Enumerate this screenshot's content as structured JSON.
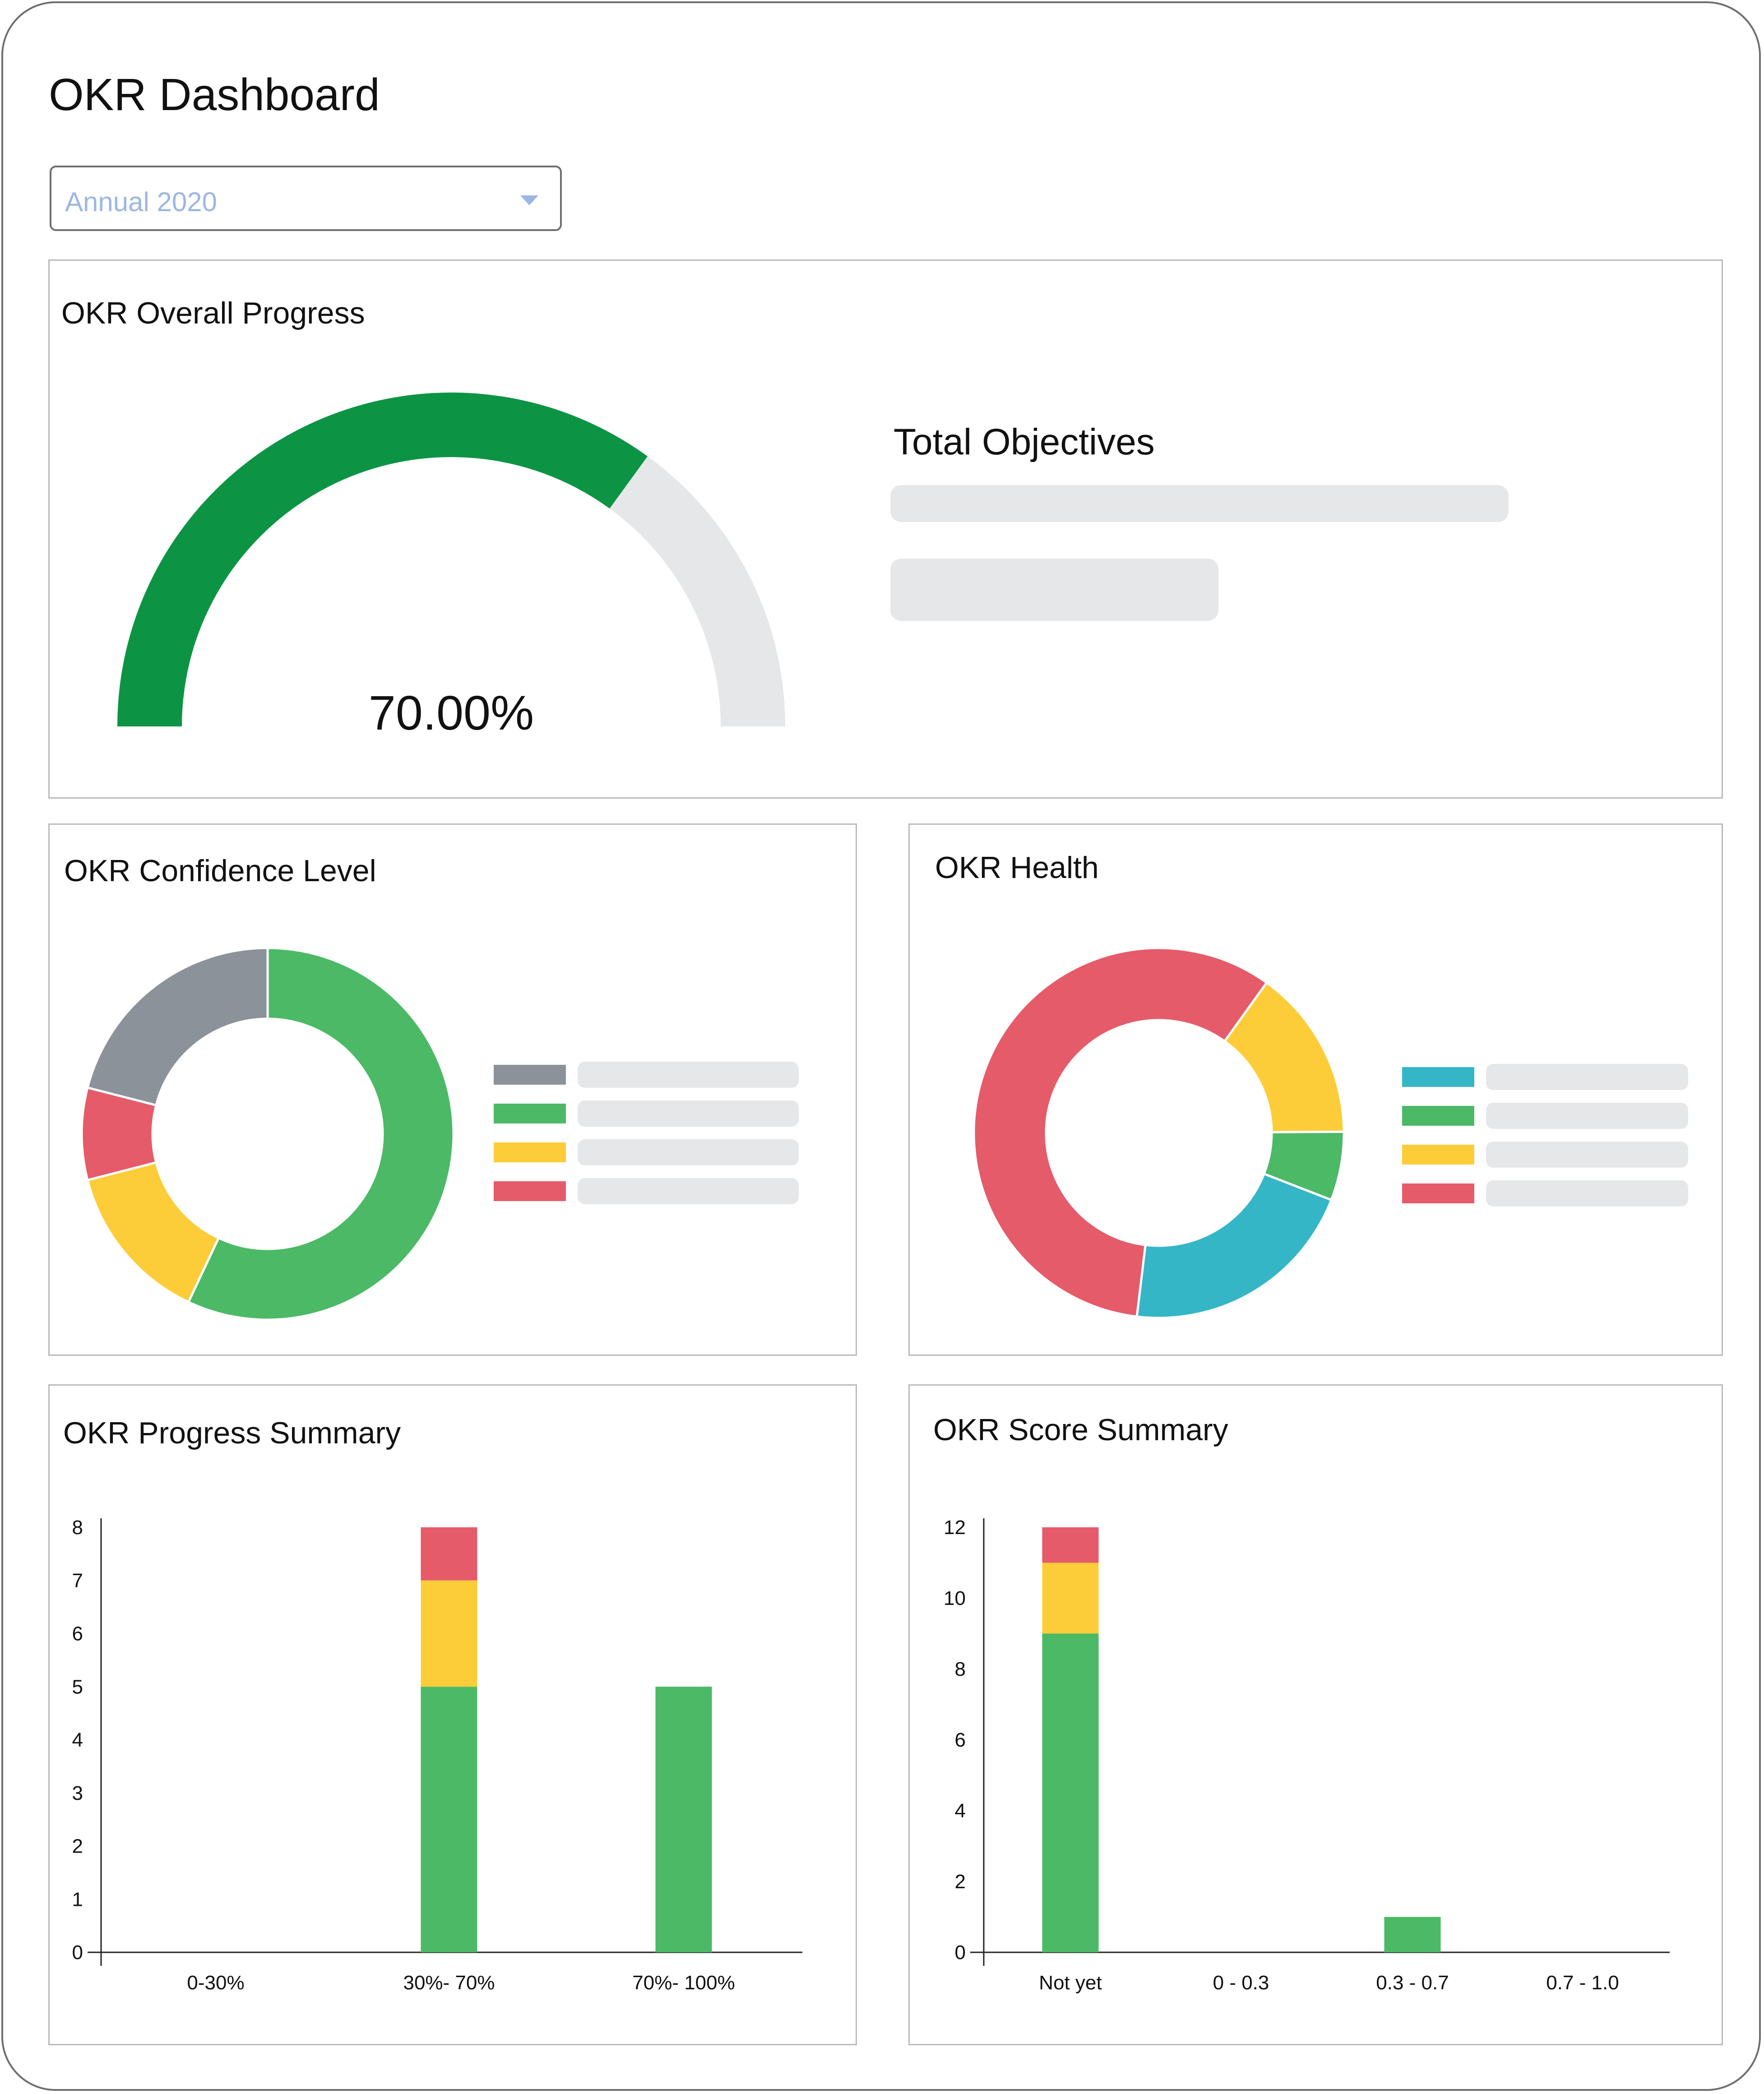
{
  "page": {
    "title": "OKR Dashboard"
  },
  "filter": {
    "selected": "Annual 2020",
    "icon": "chevron-down-icon"
  },
  "colors": {
    "green": "#4cb966",
    "dark_green": "#0c9444",
    "yellow": "#fdcd39",
    "red": "#e55b6a",
    "gray": "#8b9299",
    "teal": "#35b6c7",
    "track": "#e6e7e8"
  },
  "overall_progress": {
    "title": "OKR Overall Progress",
    "value_label": "70.00%",
    "progress": 0.7,
    "total_objectives_label": "Total Objectives"
  },
  "confidence": {
    "title": "OKR Confidence Level",
    "slices": [
      {
        "color": "#4cb966",
        "value": 0.57
      },
      {
        "color": "#fdcd39",
        "value": 0.14
      },
      {
        "color": "#e55b6a",
        "value": 0.08
      },
      {
        "color": "#8b9299",
        "value": 0.21
      }
    ],
    "legend_colors": [
      "#8b9299",
      "#4cb966",
      "#fdcd39",
      "#e55b6a"
    ]
  },
  "health": {
    "title": "OKR Health",
    "slices": [
      {
        "color": "#fdcd39",
        "value": 0.15
      },
      {
        "color": "#4cb966",
        "value": 0.06
      },
      {
        "color": "#35b6c7",
        "value": 0.21
      },
      {
        "color": "#e55b6a",
        "value": 0.58
      }
    ],
    "legend_colors": [
      "#35b6c7",
      "#4cb966",
      "#fdcd39",
      "#e55b6a"
    ]
  },
  "chart_data": [
    {
      "type": "bar",
      "title": "OKR Progress Summary",
      "categories": [
        "0-30%",
        "30%- 70%",
        "70%- 100%"
      ],
      "y_ticks": [
        "0",
        "1",
        "2",
        "3",
        "4",
        "5",
        "6",
        "7",
        "8"
      ],
      "ylim": [
        0,
        8
      ],
      "stacked": true,
      "series": [
        {
          "color": "#4cb966",
          "values": [
            0,
            5,
            5
          ]
        },
        {
          "color": "#fdcd39",
          "values": [
            0,
            2,
            0
          ]
        },
        {
          "color": "#e55b6a",
          "values": [
            0,
            1,
            0
          ]
        }
      ]
    },
    {
      "type": "bar",
      "title": "OKR Score Summary",
      "categories": [
        "Not yet",
        "0 - 0.3",
        "0.3 - 0.7",
        "0.7 - 1.0"
      ],
      "y_ticks": [
        "0",
        "2",
        "4",
        "6",
        "8",
        "10",
        "12"
      ],
      "ylim": [
        0,
        12
      ],
      "stacked": true,
      "series": [
        {
          "color": "#4cb966",
          "values": [
            9,
            0,
            1,
            0
          ]
        },
        {
          "color": "#fdcd39",
          "values": [
            2,
            0,
            0,
            0
          ]
        },
        {
          "color": "#e55b6a",
          "values": [
            1,
            0,
            0,
            0
          ]
        }
      ]
    }
  ]
}
